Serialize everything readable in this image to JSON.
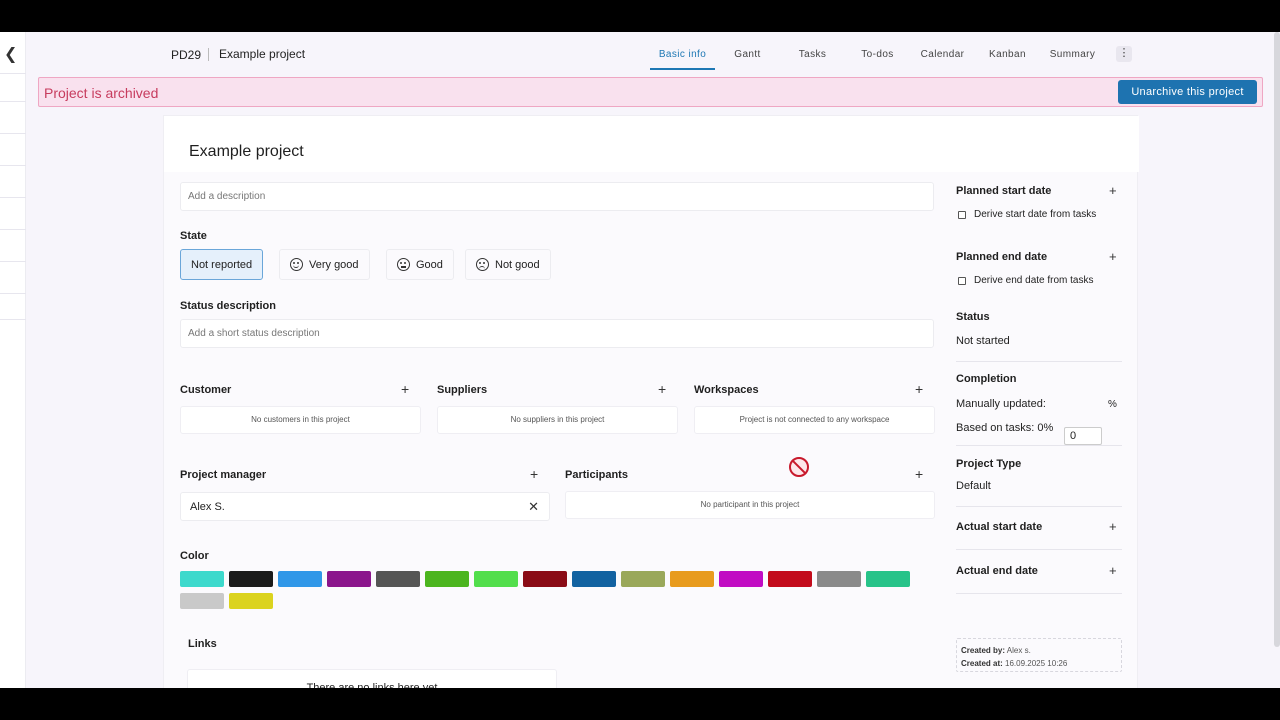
{
  "header": {
    "project_code": "PD29",
    "project_name": "Example project",
    "tabs": [
      {
        "label": "Basic info",
        "active": true
      },
      {
        "label": "Gantt"
      },
      {
        "label": "Tasks"
      },
      {
        "label": "To-dos"
      },
      {
        "label": "Calendar"
      },
      {
        "label": "Kanban"
      },
      {
        "label": "Summary"
      }
    ],
    "more_icon": "kebab-icon"
  },
  "banner": {
    "message": "Project is archived",
    "button_label": "Unarchive this project",
    "color": "#c73c5e",
    "button_color": "#1e73b0"
  },
  "main": {
    "title": "Example project",
    "description_placeholder": "Add a description",
    "state": {
      "label": "State",
      "options": [
        "Not reported",
        "Very good",
        "Good",
        "Not good"
      ],
      "selected": "Not reported"
    },
    "status_description": {
      "label": "Status description",
      "placeholder": "Add a short status description"
    },
    "customer": {
      "label": "Customer",
      "empty": "No customers in this project"
    },
    "suppliers": {
      "label": "Suppliers",
      "empty": "No suppliers in this project"
    },
    "workspaces": {
      "label": "Workspaces",
      "empty": "Project is not connected to any workspace"
    },
    "project_manager": {
      "label": "Project manager",
      "value": "Alex S."
    },
    "participants": {
      "label": "Participants",
      "empty": "No participant in this project"
    },
    "color": {
      "label": "Color",
      "swatches": [
        "#3dd9cc",
        "#1b1b1b",
        "#3097e8",
        "#8b158c",
        "#555555",
        "#4cb51f",
        "#52de4c",
        "#8a0b16",
        "#1262a1",
        "#9aa85a",
        "#e89b1e",
        "#c10cc3",
        "#c30b1c",
        "#8a8a8a",
        "#27c389",
        "#c9c9c9",
        "#dbd31f"
      ]
    },
    "links": {
      "label": "Links",
      "empty": "There are no links here yet"
    }
  },
  "sidebar": {
    "planned_start": {
      "label": "Planned start date",
      "checkbox": "Derive start date from tasks"
    },
    "planned_end": {
      "label": "Planned end date",
      "checkbox": "Derive end date from tasks"
    },
    "status": {
      "label": "Status",
      "value": "Not started"
    },
    "completion": {
      "label": "Completion",
      "manual_label": "Manually updated:",
      "manual_value": "0",
      "unit": "%",
      "tasks_based": "Based on tasks: 0%"
    },
    "project_type": {
      "label": "Project Type",
      "value": "Default"
    },
    "actual_start": {
      "label": "Actual start date"
    },
    "actual_end": {
      "label": "Actual end date"
    },
    "meta": {
      "created_by_label": "Created by:",
      "created_by": "Alex s.",
      "created_at_label": "Created at:",
      "created_at": "16.09.2025 10:26"
    }
  }
}
